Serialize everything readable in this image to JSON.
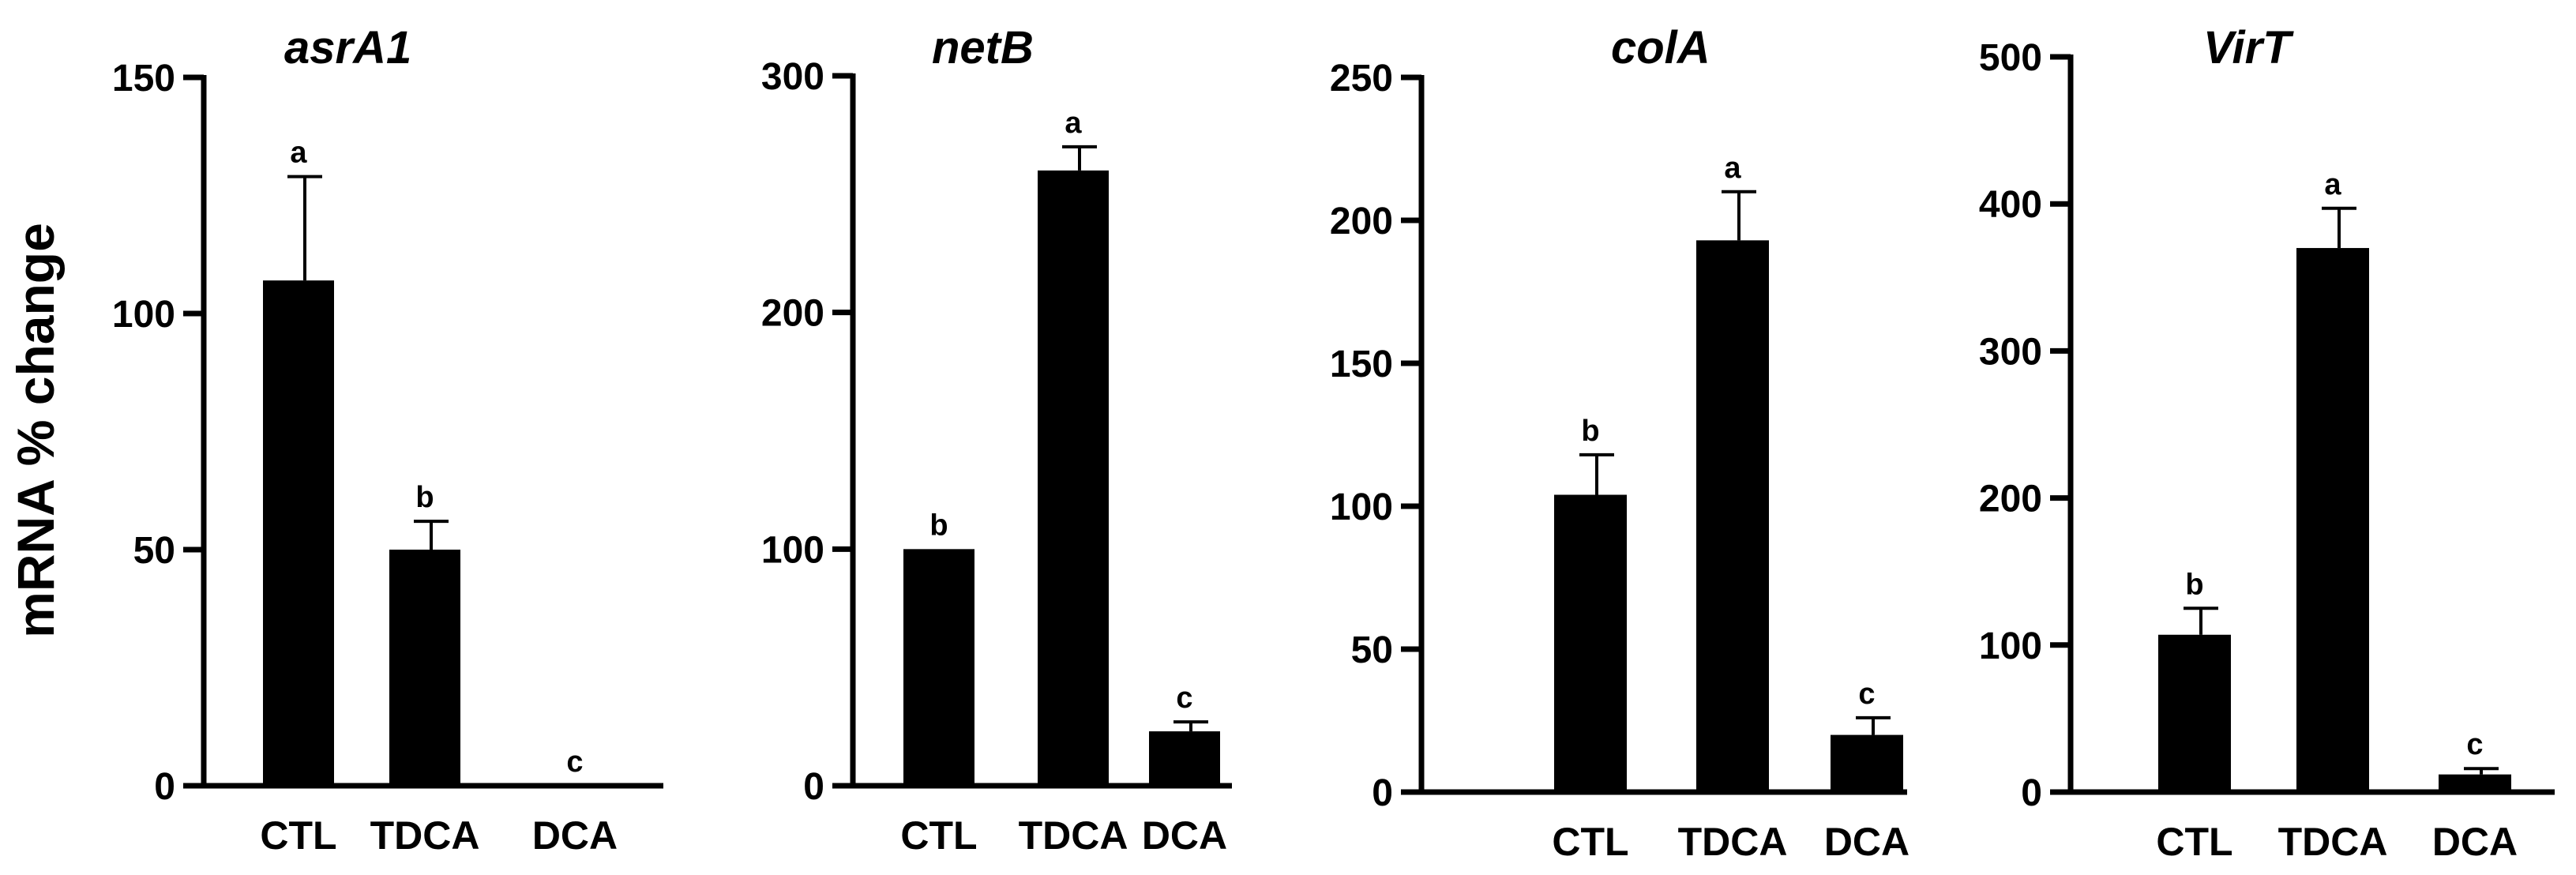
{
  "figure": {
    "ylabel": "mRNA % change"
  },
  "chart_data": [
    {
      "type": "bar",
      "title": "asrA1",
      "categories": [
        "CTL",
        "TDCA",
        "DCA"
      ],
      "values": [
        107,
        50,
        0
      ],
      "errors": [
        22,
        6,
        0
      ],
      "letters": [
        "a",
        "b",
        "c"
      ],
      "ylim": [
        0,
        150
      ],
      "yticks": [
        0,
        50,
        100,
        150
      ],
      "ytick_labels": [
        "0",
        "50",
        "100",
        "150"
      ],
      "xlabel": "",
      "ylabel": "mRNA % change"
    },
    {
      "type": "bar",
      "title": "netB",
      "categories": [
        "CTL",
        "TDCA",
        "DCA"
      ],
      "values": [
        100,
        260,
        23
      ],
      "errors": [
        0,
        10,
        4
      ],
      "letters": [
        "b",
        "a",
        "c"
      ],
      "ylim": [
        0,
        300
      ],
      "yticks": [
        0,
        100,
        200,
        300
      ],
      "ytick_labels": [
        "0",
        "100",
        "200",
        "300"
      ],
      "xlabel": "",
      "ylabel": ""
    },
    {
      "type": "bar",
      "title": "colA",
      "categories": [
        "CTL",
        "TDCA",
        "DCA"
      ],
      "values": [
        104,
        193,
        20
      ],
      "errors": [
        14,
        17,
        6
      ],
      "letters": [
        "b",
        "a",
        "c"
      ],
      "ylim": [
        0,
        250
      ],
      "yticks": [
        0,
        50,
        100,
        150,
        200,
        250
      ],
      "ytick_labels": [
        "0",
        "50",
        "100",
        "150",
        "200",
        "250"
      ],
      "xlabel": "",
      "ylabel": ""
    },
    {
      "type": "bar",
      "title": "VirT",
      "categories": [
        "CTL",
        "TDCA",
        "DCA"
      ],
      "values": [
        107,
        370,
        12
      ],
      "errors": [
        18,
        27,
        4
      ],
      "letters": [
        "b",
        "a",
        "c"
      ],
      "ylim": [
        0,
        500
      ],
      "yticks": [
        0,
        100,
        200,
        300,
        400,
        500
      ],
      "ytick_labels": [
        "0",
        "100",
        "200",
        "300",
        "400",
        "500"
      ],
      "xlabel": "",
      "ylabel": ""
    }
  ]
}
